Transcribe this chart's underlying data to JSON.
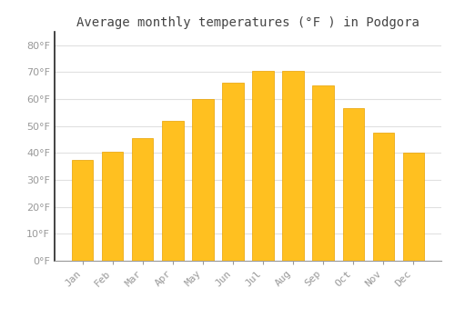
{
  "title": "Average monthly temperatures (°F ) in Podgora",
  "months": [
    "Jan",
    "Feb",
    "Mar",
    "Apr",
    "May",
    "Jun",
    "Jul",
    "Aug",
    "Sep",
    "Oct",
    "Nov",
    "Dec"
  ],
  "values": [
    37.5,
    40.5,
    45.5,
    52,
    60,
    66,
    70.5,
    70.5,
    65,
    56.5,
    47.5,
    40
  ],
  "bar_color": "#FFC020",
  "bar_edge_color": "#E8A000",
  "background_color": "#FFFFFF",
  "grid_color": "#E0E0E0",
  "ylim": [
    0,
    85
  ],
  "yticks": [
    0,
    10,
    20,
    30,
    40,
    50,
    60,
    70,
    80
  ],
  "title_fontsize": 10,
  "tick_fontsize": 8,
  "tick_color": "#999999",
  "title_color": "#444444",
  "spine_color": "#222222"
}
